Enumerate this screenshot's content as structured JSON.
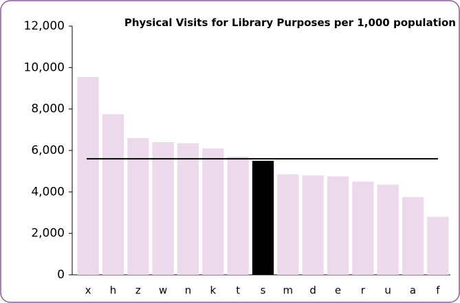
{
  "chart_data": {
    "type": "bar",
    "title": "Physical Visits for Library Purposes per 1,000 population",
    "categories": [
      "x",
      "h",
      "z",
      "w",
      "n",
      "k",
      "t",
      "s",
      "m",
      "d",
      "e",
      "r",
      "u",
      "a",
      "f"
    ],
    "values": [
      9550,
      7750,
      6600,
      6400,
      6350,
      6100,
      5700,
      5500,
      4850,
      4800,
      4750,
      4500,
      4350,
      3750,
      2800
    ],
    "colors": [
      "#ecdaec",
      "#ecdaec",
      "#ecdaec",
      "#ecdaec",
      "#ecdaec",
      "#ecdaec",
      "#ecdaec",
      "#000000",
      "#ecdaec",
      "#ecdaec",
      "#ecdaec",
      "#ecdaec",
      "#ecdaec",
      "#ecdaec",
      "#ecdaec"
    ],
    "reference_line": {
      "value": 5600,
      "color": "#000000"
    },
    "ylim": [
      0,
      12000
    ],
    "yticks": [
      0,
      {
        "value": 2000,
        "label": "2,000"
      },
      {
        "value": 4000,
        "label": "4,000"
      },
      {
        "value": 6000,
        "label": "6,000"
      },
      {
        "value": 8000,
        "label": "8,000"
      },
      {
        "value": 10000,
        "label": "10,000"
      },
      {
        "value": 12000,
        "label": "12,000"
      }
    ],
    "grid": false
  }
}
